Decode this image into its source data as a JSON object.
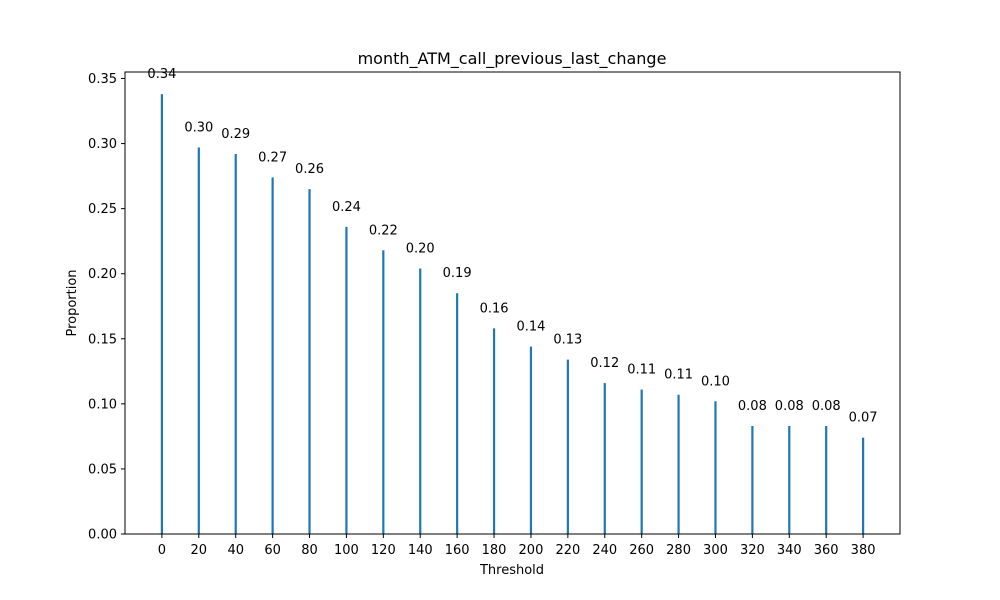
{
  "chart_data": {
    "type": "bar",
    "title": "month_ATM_call_previous_last_change",
    "xlabel": "Threshold",
    "ylabel": "Proportion",
    "categories": [
      "0",
      "20",
      "40",
      "60",
      "80",
      "100",
      "120",
      "140",
      "160",
      "180",
      "200",
      "220",
      "240",
      "260",
      "280",
      "300",
      "320",
      "340",
      "360",
      "380"
    ],
    "x": [
      0,
      20,
      40,
      60,
      80,
      100,
      120,
      140,
      160,
      180,
      200,
      220,
      240,
      260,
      280,
      300,
      320,
      340,
      360,
      380
    ],
    "values": [
      0.338,
      0.297,
      0.292,
      0.274,
      0.265,
      0.236,
      0.218,
      0.204,
      0.185,
      0.158,
      0.144,
      0.134,
      0.116,
      0.111,
      0.107,
      0.102,
      0.083,
      0.083,
      0.083,
      0.074
    ],
    "data_labels": [
      "0.34",
      "0.30",
      "0.29",
      "0.27",
      "0.26",
      "0.24",
      "0.22",
      "0.20",
      "0.19",
      "0.16",
      "0.14",
      "0.13",
      "0.12",
      "0.11",
      "0.11",
      "0.10",
      "0.08",
      "0.08",
      "0.08",
      "0.07"
    ],
    "yticks": [
      "0.00",
      "0.05",
      "0.10",
      "0.15",
      "0.20",
      "0.25",
      "0.30",
      "0.35"
    ],
    "ytick_values": [
      0,
      0.05,
      0.1,
      0.15,
      0.2,
      0.25,
      0.3,
      0.35
    ],
    "xlim": [
      -20,
      400
    ],
    "ylim": [
      0,
      0.355
    ],
    "grid": false,
    "legend": "none",
    "bar_color": "#1f77b4"
  }
}
